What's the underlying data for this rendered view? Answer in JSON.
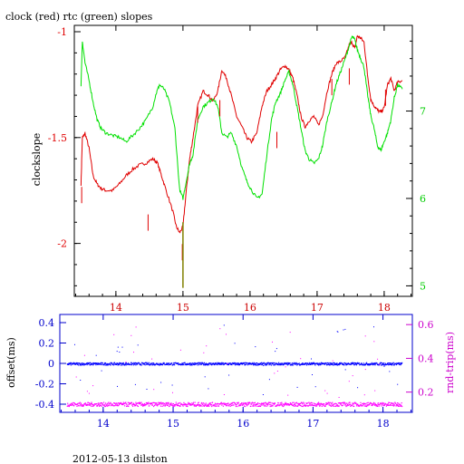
{
  "chart_data": [
    {
      "type": "line",
      "title": "clock (red) rtc (green) slopes",
      "xlabel": "",
      "ylabel": "clockslope",
      "y2label": "",
      "xlim": [
        13.38,
        18.42
      ],
      "ylim": [
        -2.25,
        -0.97
      ],
      "y2lim": [
        4.88,
        7.98
      ],
      "x_ticks": [
        14,
        15,
        16,
        17,
        18
      ],
      "y_ticks": [
        -2,
        -1.5,
        -1
      ],
      "y2_ticks": [
        5,
        6,
        7
      ],
      "grid": false,
      "colors": {
        "clock": "#e00000",
        "rtc": "#00e000",
        "axis_left": "#000000",
        "axis_x": "#cc0000",
        "axis_right": "#00cc00"
      },
      "series": [
        {
          "axis": "left",
          "color": "#e00000",
          "x": [
            13.48,
            13.5,
            13.54,
            13.6,
            13.66,
            13.72,
            13.78,
            13.85,
            13.95,
            14.05,
            14.15,
            14.25,
            14.35,
            14.45,
            14.55,
            14.62,
            14.68,
            14.75,
            14.85,
            14.9,
            14.95,
            15.0,
            15.05,
            15.1,
            15.15,
            15.22,
            15.3,
            15.38,
            15.45,
            15.52,
            15.58,
            15.65,
            15.72,
            15.8,
            15.88,
            15.95,
            16.02,
            16.1,
            16.18,
            16.25,
            16.32,
            16.38,
            16.45,
            16.52,
            16.58,
            16.64,
            16.7,
            16.76,
            16.82,
            16.88,
            16.95,
            17.02,
            17.08,
            17.15,
            17.22,
            17.28,
            17.35,
            17.42,
            17.48,
            17.52,
            17.56,
            17.6,
            17.65,
            17.7,
            17.75,
            17.8,
            17.85,
            17.9,
            17.95,
            18.0,
            18.05,
            18.1,
            18.15,
            18.2,
            18.27
          ],
          "y": [
            -1.72,
            -1.5,
            -1.48,
            -1.55,
            -1.68,
            -1.72,
            -1.74,
            -1.75,
            -1.75,
            -1.72,
            -1.68,
            -1.65,
            -1.63,
            -1.62,
            -1.6,
            -1.62,
            -1.68,
            -1.75,
            -1.85,
            -1.92,
            -1.95,
            -1.92,
            -1.75,
            -1.6,
            -1.5,
            -1.35,
            -1.28,
            -1.3,
            -1.33,
            -1.28,
            -1.18,
            -1.22,
            -1.3,
            -1.4,
            -1.45,
            -1.5,
            -1.52,
            -1.48,
            -1.35,
            -1.28,
            -1.25,
            -1.22,
            -1.18,
            -1.16,
            -1.18,
            -1.22,
            -1.3,
            -1.4,
            -1.45,
            -1.42,
            -1.4,
            -1.44,
            -1.4,
            -1.28,
            -1.2,
            -1.15,
            -1.14,
            -1.12,
            -1.06,
            -1.05,
            -1.08,
            -1.02,
            -1.03,
            -1.05,
            -1.2,
            -1.32,
            -1.35,
            -1.37,
            -1.38,
            -1.36,
            -1.25,
            -1.22,
            -1.28,
            -1.24,
            -1.23
          ]
        },
        {
          "axis": "right",
          "color": "#00e000",
          "x": [
            13.48,
            13.5,
            13.54,
            13.6,
            13.66,
            13.72,
            13.78,
            13.85,
            13.95,
            14.05,
            14.15,
            14.25,
            14.35,
            14.45,
            14.55,
            14.6,
            14.65,
            14.72,
            14.8,
            14.88,
            14.95,
            15.0,
            15.05,
            15.1,
            15.15,
            15.22,
            15.3,
            15.38,
            15.45,
            15.52,
            15.58,
            15.65,
            15.72,
            15.8,
            15.88,
            15.95,
            16.02,
            16.1,
            16.18,
            16.25,
            16.32,
            16.38,
            16.45,
            16.52,
            16.58,
            16.64,
            16.7,
            16.76,
            16.82,
            16.88,
            16.95,
            17.02,
            17.08,
            17.15,
            17.22,
            17.28,
            17.35,
            17.42,
            17.48,
            17.52,
            17.56,
            17.6,
            17.65,
            17.7,
            17.75,
            17.8,
            17.85,
            17.9,
            17.95,
            18.0,
            18.05,
            18.1,
            18.15,
            18.2,
            18.27
          ],
          "y": [
            7.3,
            7.8,
            7.55,
            7.35,
            7.1,
            6.9,
            6.8,
            6.75,
            6.72,
            6.7,
            6.65,
            6.72,
            6.8,
            6.9,
            7.05,
            7.2,
            7.3,
            7.25,
            7.1,
            6.8,
            6.1,
            6.0,
            6.2,
            6.4,
            6.5,
            6.9,
            7.05,
            7.1,
            7.15,
            7.05,
            6.75,
            6.7,
            6.75,
            6.6,
            6.35,
            6.2,
            6.1,
            6.0,
            6.05,
            6.5,
            6.9,
            7.1,
            7.2,
            7.35,
            7.45,
            7.3,
            7.05,
            6.8,
            6.55,
            6.45,
            6.4,
            6.45,
            6.6,
            6.9,
            7.1,
            7.3,
            7.45,
            7.6,
            7.75,
            7.85,
            7.82,
            7.7,
            7.6,
            7.5,
            7.2,
            6.95,
            6.8,
            6.6,
            6.55,
            6.65,
            6.75,
            6.9,
            7.15,
            7.3,
            7.25
          ]
        }
      ]
    },
    {
      "type": "scatter",
      "title": "",
      "xlabel": "",
      "ylabel": "offset(ms)",
      "y2label": "rnd-trip(ms)",
      "xlim": [
        13.38,
        18.42
      ],
      "ylim": [
        -0.48,
        0.48
      ],
      "y2lim": [
        0.08,
        0.66
      ],
      "x_ticks": [
        14,
        15,
        16,
        17,
        18
      ],
      "y_ticks": [
        -0.4,
        -0.2,
        0,
        0.2,
        0.4
      ],
      "y2_ticks": [
        0.2,
        0.4,
        0.6
      ],
      "grid": false,
      "colors": {
        "offset": "#0000ff",
        "rndtrip": "#ff00ff",
        "axis_left": "#000000",
        "axis_x": "#0000cc",
        "axis_right": "#cc00cc"
      },
      "series": [
        {
          "axis": "left",
          "color": "#0000ff",
          "x_range": [
            13.48,
            18.27
          ],
          "y_center": 0.0,
          "y_spread": 0.012
        },
        {
          "axis": "right",
          "color": "#ff00ff",
          "x_range": [
            13.48,
            18.27
          ],
          "y_center": 0.13,
          "y_spread": 0.012
        }
      ]
    }
  ],
  "footer": "2012-05-13 dilston"
}
